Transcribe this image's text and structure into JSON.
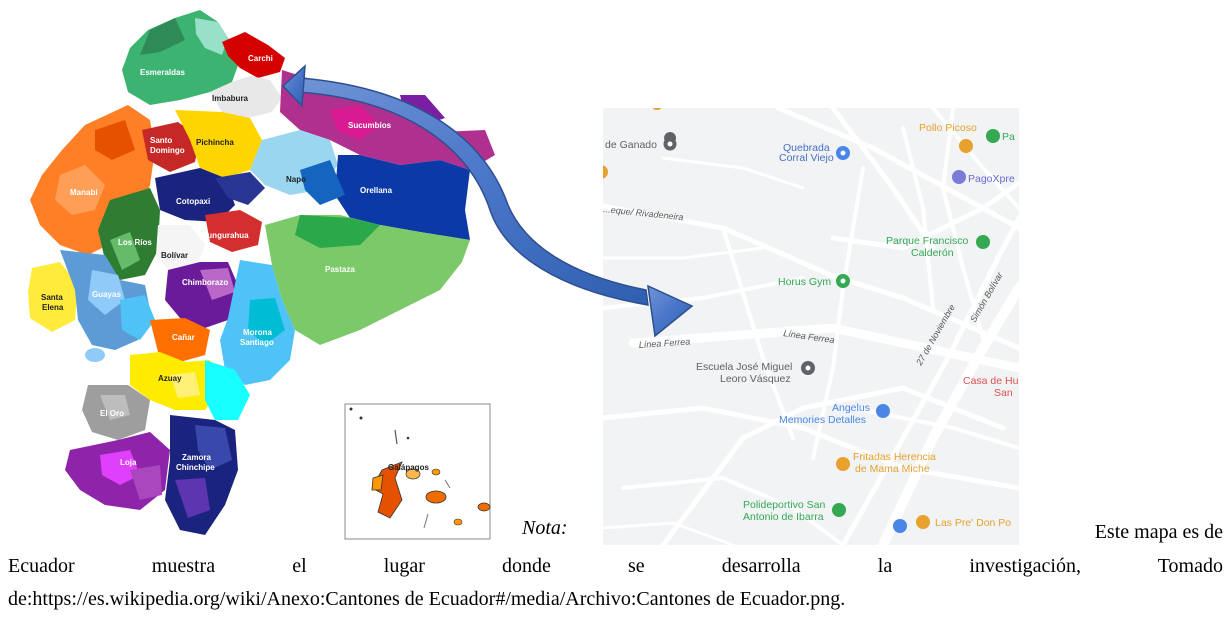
{
  "ecuador_map": {
    "provinces": [
      "Esmeraldas",
      "Carchi",
      "Imbabura",
      "Sucumbíos",
      "Pichincha",
      "Santo Domingo",
      "Napo",
      "Orellana",
      "Manabí",
      "Cotopaxi",
      "Los Ríos",
      "Bolívar",
      "Tungurahua",
      "Pastaza",
      "Santa Elena",
      "Guayas",
      "Chimborazo",
      "Cañar",
      "Morona Santiago",
      "Azuay",
      "El Oro",
      "Loja",
      "Zamora Chinchipe"
    ],
    "labels": {
      "esmeraldas": "Esmeraldas",
      "carchi": "Carchi",
      "imbabura": "Imbabura",
      "sucumbios": "Sucumbíos",
      "pichincha": "Pichincha",
      "santo_domingo_1": "Santo",
      "santo_domingo_2": "Domingo",
      "napo": "Napo",
      "orellana": "Orellana",
      "manabi": "Manabí",
      "cotopaxi": "Cotopaxi",
      "los_rios": "Los Ríos",
      "bolivar": "Bolívar",
      "tungurahua": "Tungurahua",
      "pastaza": "Pastaza",
      "santa_elena_1": "Santa",
      "santa_elena_2": "Elena",
      "guayas": "Guayas",
      "chimborazo": "Chimborazo",
      "canar": "Cañar",
      "morona_1": "Morona",
      "morona_2": "Santiago",
      "azuay": "Azuay",
      "el_oro": "El Oro",
      "loja": "Loja",
      "zamora_1": "Zamora",
      "zamora_2": "Chinchipe"
    },
    "galapagos_inset": {
      "label": "Galápagos"
    }
  },
  "street_map": {
    "places": {
      "ganado": "de Ganado",
      "quebrada_1": "Quebrada",
      "quebrada_2": "Corral Viejo",
      "pollo": "Pollo Picoso",
      "pa": "Pa",
      "pagoxpress": "PagoXpre",
      "parque_1": "Parque Francisco",
      "parque_2": "Calderón",
      "horus": "Horus Gym",
      "escuela_1": "Escuela José Miguel",
      "escuela_2": "Leoro Vásquez",
      "casa_1": "Casa de Hu",
      "casa_2": "San",
      "angelus_1": "Angelus",
      "angelus_2": "Memories Detalles",
      "fritadas_1": "Fritadas Herencia",
      "fritadas_2": "de Mama Miche",
      "polideportivo_1": "Polideportivo San",
      "polideportivo_2": "Antonio de Ibarra",
      "pre_don": "Las Pre' Don Po"
    },
    "roads": {
      "linea_ferrea_1": "Línea Ferrea",
      "linea_ferrea_2": "Línea Ferrea",
      "rivadeneira": "...eque/ Rivadeneira",
      "noviembre": "27 de Noviembre",
      "bolivar": "Simón Bolívar"
    }
  },
  "caption": {
    "nota": "Nota:",
    "line1_end": "Este mapa es de",
    "line2": "Ecuador muestra el lugar donde se desarrolla la investigación, Tomado",
    "line3": "de:https://es.wikipedia.org/wiki/Anexo:Cantones de Ecuador#/media/Archivo:Cantones de Ecuador.png."
  },
  "colors": {
    "arrow_fill": "#4a76c8",
    "street_bg": "#f1f3f4",
    "road": "#ffffff",
    "poi_orange": "#e8a12c",
    "poi_blue": "#4a86e8",
    "poi_green": "#34a853"
  }
}
